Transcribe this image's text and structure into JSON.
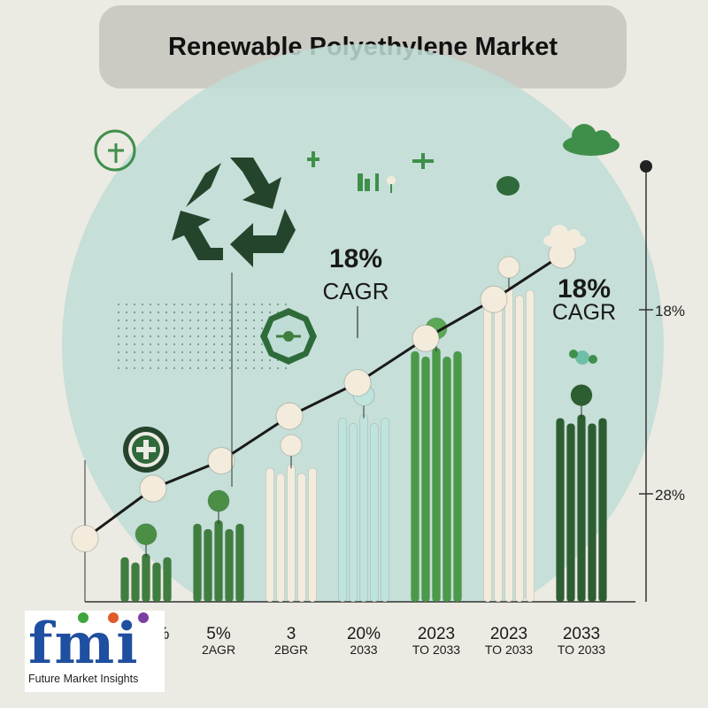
{
  "title": "Renewable Polyethylene Market",
  "chart_data": {
    "type": "bar",
    "title": "Renewable Polyethylene Market",
    "categories": [
      {
        "label": "%",
        "sublabel": ""
      },
      {
        "label": "5%",
        "sublabel": "2AGR"
      },
      {
        "label": "3",
        "sublabel": "2BGR"
      },
      {
        "label": "20%",
        "sublabel": "2033"
      },
      {
        "label": "2023",
        "sublabel": "TO 2033"
      },
      {
        "label": "2023",
        "sublabel": "TO 2033"
      },
      {
        "label": "2033",
        "sublabel": "TO 2033"
      }
    ],
    "values": [
      8,
      14,
      24,
      33,
      45,
      56,
      33
    ],
    "bar_colors": [
      "#3f7e3f",
      "#3f7e3f",
      "#f3ecdc",
      "#bfe3dd",
      "#4a9a48",
      "#f3ecdc",
      "#2d5e31"
    ],
    "bar_cap_colors": [
      "#4a8f45",
      "#4a8f45",
      "#f3ecdc",
      "#bfe3dd",
      "#5aa855",
      "#f3ecdc",
      "#2d5e31"
    ],
    "trend_line": [
      5,
      14,
      19,
      27,
      33,
      41,
      48,
      56
    ],
    "annotations": [
      {
        "text": "18%",
        "subtext": "CAGR"
      },
      {
        "text": "18%",
        "subtext": "CAGR"
      }
    ],
    "right_axis_labels": [
      "18%",
      "28%"
    ],
    "ylim": [
      0,
      70
    ],
    "grid": false,
    "legend": "none"
  },
  "logo": {
    "letters": "fmi",
    "caption": "Future Market Insights",
    "dot_colors": [
      "#3da63d",
      "#e05a2b",
      "#7b3fa0"
    ]
  },
  "icons": [
    "recycle-icon",
    "leaf-badge-icon",
    "plus-badge-icon",
    "cloud-icon",
    "sprout-icon",
    "gauge-icon"
  ],
  "colors": {
    "background": "#ebeae3",
    "backdrop_circle": "#bfddd6",
    "title_box": "#cbcbc4",
    "trend_line": "#1a1a1a",
    "marker": "#f3ecdc"
  }
}
